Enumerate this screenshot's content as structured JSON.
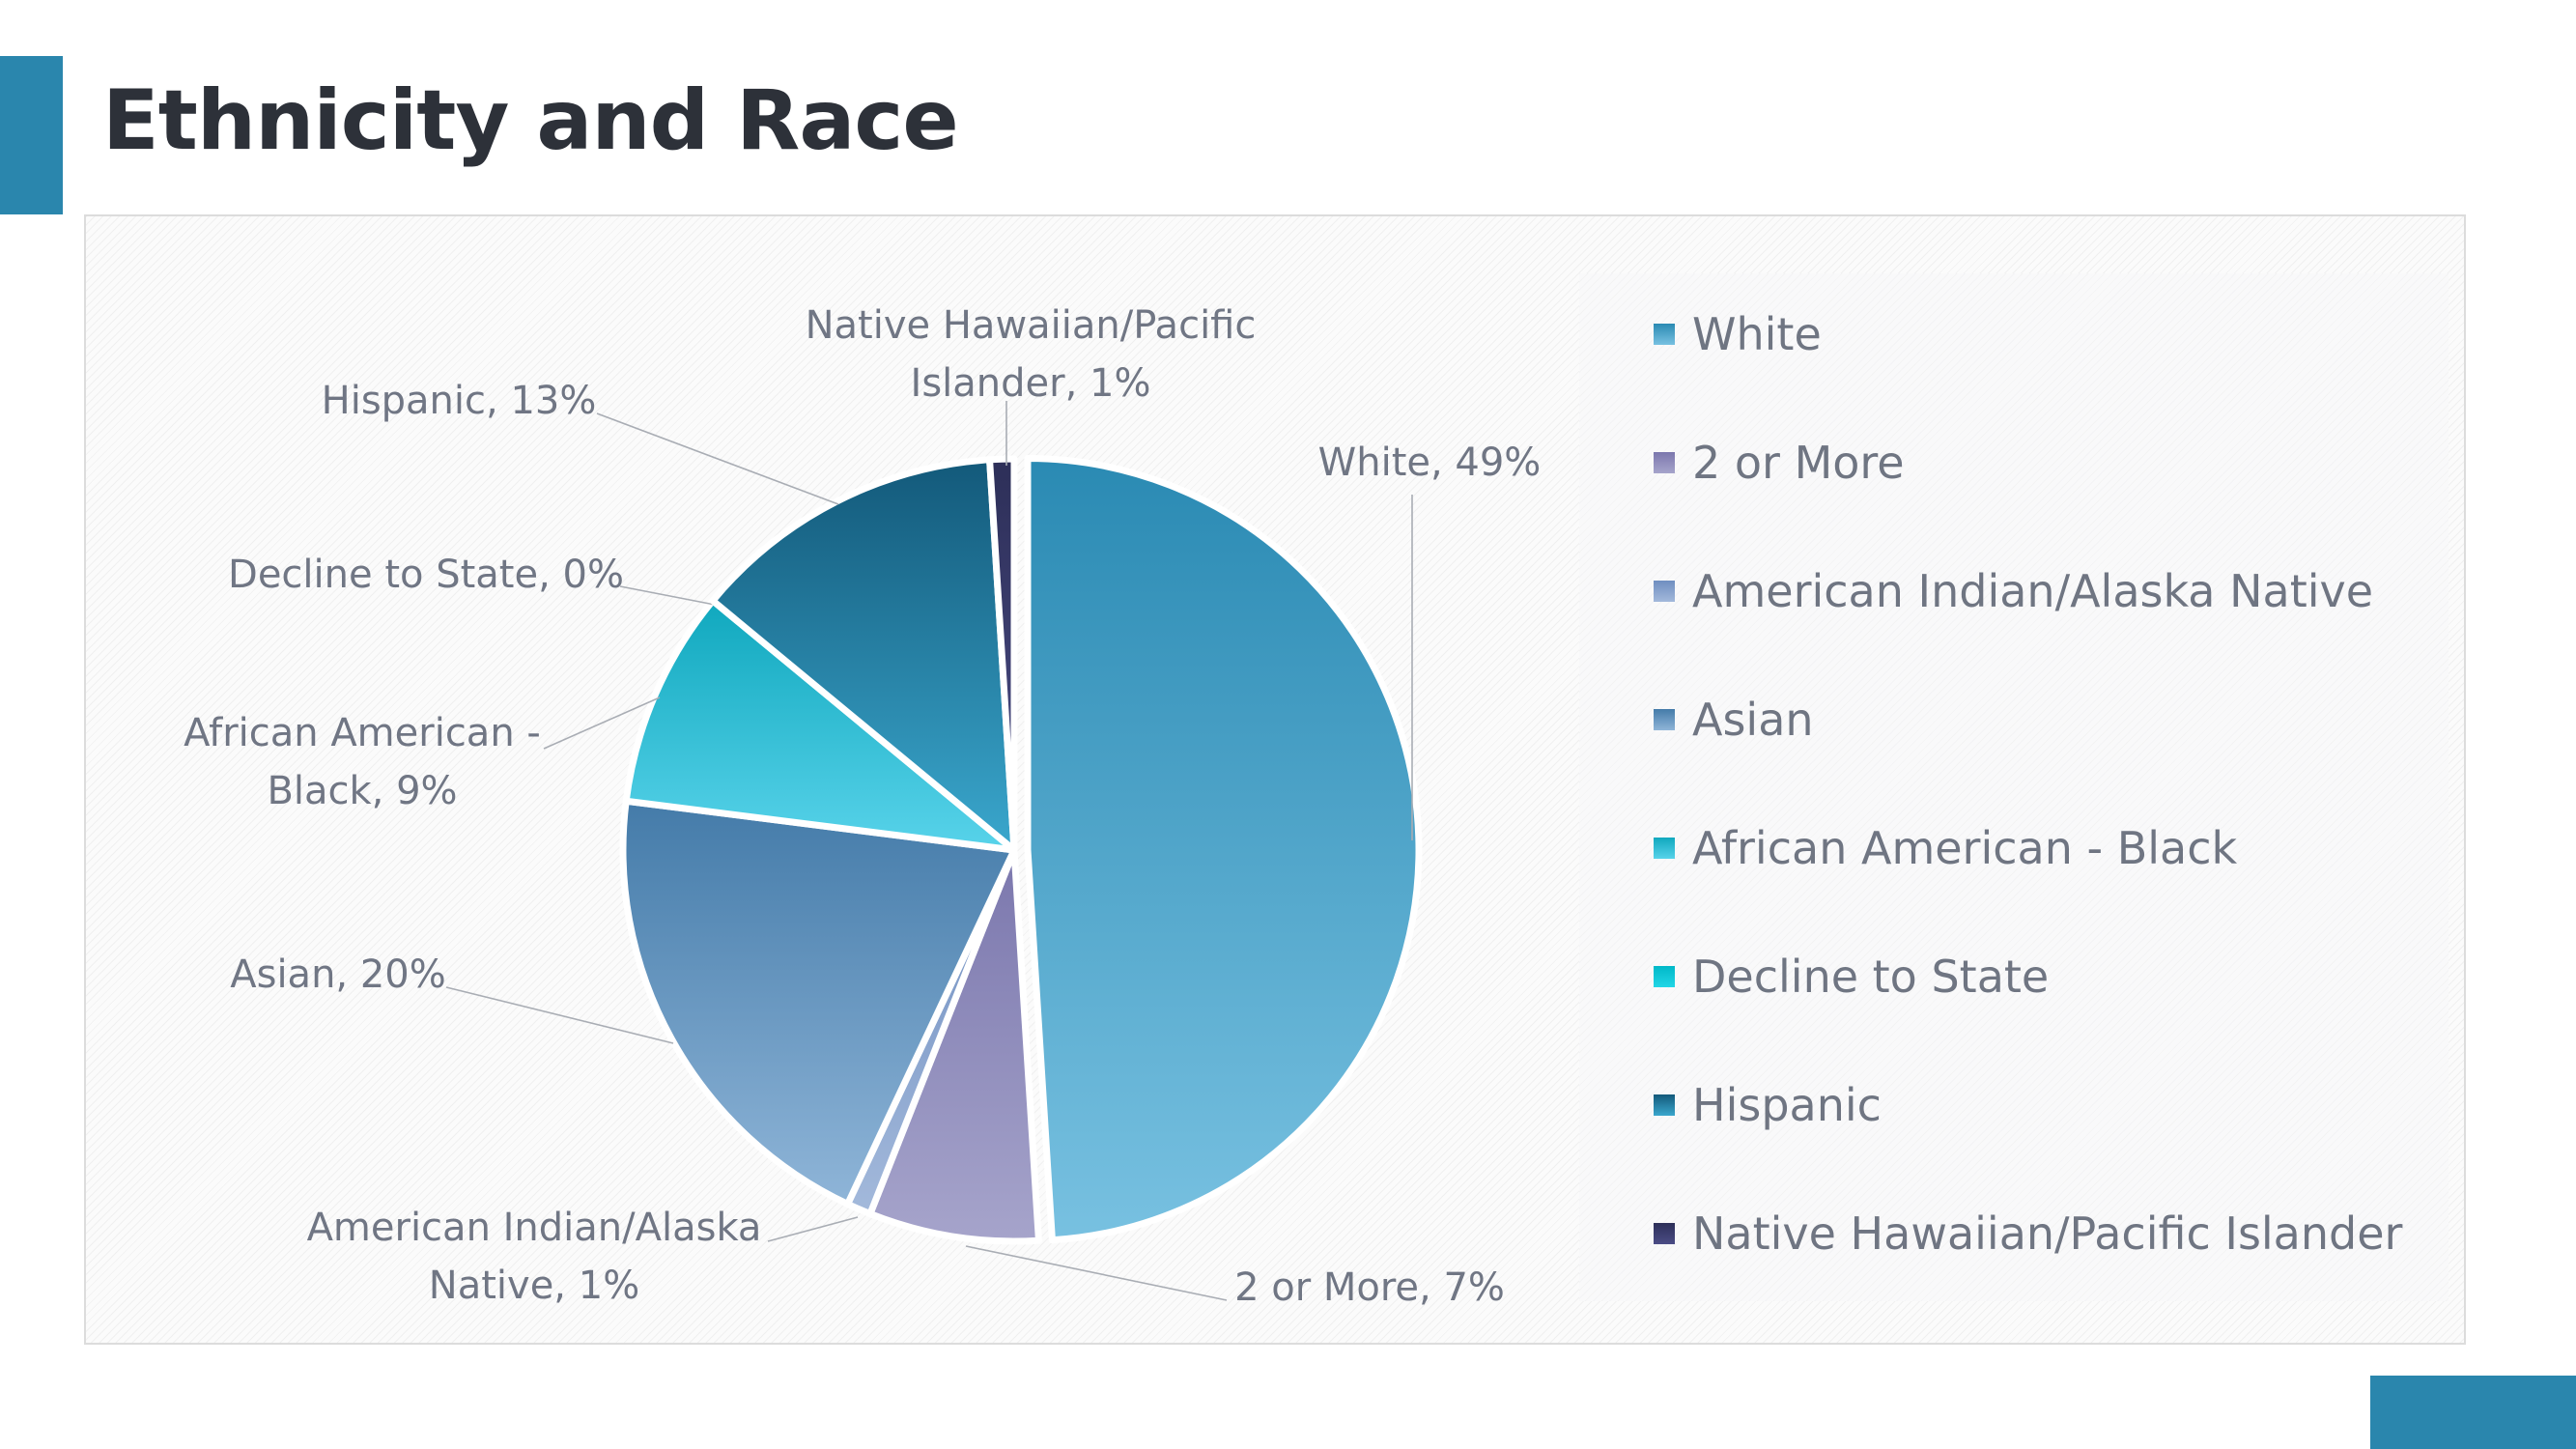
{
  "title": "Ethnicity and Race",
  "chart_data": {
    "type": "pie",
    "title": "",
    "categories": [
      "White",
      "2 or More",
      "American Indian/Alaska Native",
      "Asian",
      "African American - Black",
      "Decline to State",
      "Hispanic",
      "Native Hawaiian/Pacific Islander"
    ],
    "values": [
      49,
      7,
      1,
      20,
      9,
      0,
      13,
      1
    ],
    "data_labels": [
      [
        "White, 49%"
      ],
      [
        "2 or More, 7%"
      ],
      [
        "American Indian/Alaska",
        "Native, 1%"
      ],
      [
        "Asian, 20%"
      ],
      [
        "African American -",
        "Black, 9%"
      ],
      [
        "Decline to State, 0%"
      ],
      [
        "Hispanic, 13%"
      ],
      [
        "Native Hawaiian/Pacific",
        "Islander, 1%"
      ]
    ],
    "colors": [
      [
        "#2a8ab3",
        "#78c1e1"
      ],
      [
        "#7b77ad",
        "#a6a4cb"
      ],
      [
        "#6f8ec0",
        "#a3b9db"
      ],
      [
        "#447ba9",
        "#8fb5d8"
      ],
      [
        "#10a8be",
        "#58d3ea"
      ],
      [
        "#00b8c8",
        "#22d6e6"
      ],
      [
        "#13597a",
        "#3aa7cd"
      ],
      [
        "#2d2f58",
        "#4b4c86"
      ]
    ],
    "legend_position": "right",
    "show_percent": true
  }
}
